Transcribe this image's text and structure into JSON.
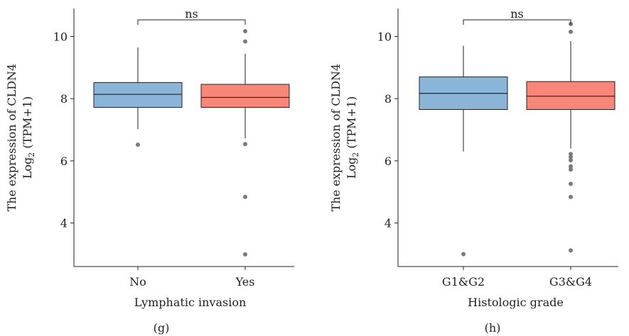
{
  "chart_data": [
    {
      "type": "box",
      "panel_label": "(g)",
      "xlabel": "Lymphatic invasion",
      "ylabel_line1": "The expression of CLDN4",
      "ylabel_line2_main": "Log",
      "ylabel_line2_sub": "2",
      "ylabel_line2_rest": " (TPM+1)",
      "ylim": [
        2.6,
        10.9
      ],
      "yticks": [
        4,
        6,
        8,
        10
      ],
      "categories": [
        "No",
        "Yes"
      ],
      "colors": [
        "#8bb5d8",
        "#f8877a"
      ],
      "boxes": [
        {
          "q1": 7.72,
          "median": 8.14,
          "q3": 8.52,
          "whisker_low": 7.02,
          "whisker_high": 9.65,
          "outliers": [
            6.52
          ]
        },
        {
          "q1": 7.72,
          "median": 8.04,
          "q3": 8.46,
          "whisker_low": 6.72,
          "whisker_high": 9.45,
          "outliers": [
            10.17,
            9.84,
            6.54,
            4.84,
            2.99
          ]
        }
      ],
      "significance": "ns"
    },
    {
      "type": "box",
      "panel_label": "(h)",
      "xlabel": "Histologic grade",
      "ylabel_line1": "The expression of CLDN4",
      "ylabel_line2_main": "Log",
      "ylabel_line2_sub": "2",
      "ylabel_line2_rest": " (TPM+1)",
      "ylim": [
        2.6,
        10.9
      ],
      "yticks": [
        4,
        6,
        8,
        10
      ],
      "categories": [
        "G1&G2",
        "G3&G4"
      ],
      "colors": [
        "#8bb5d8",
        "#f8877a"
      ],
      "boxes": [
        {
          "q1": 7.65,
          "median": 8.17,
          "q3": 8.7,
          "whisker_low": 6.3,
          "whisker_high": 9.7,
          "outliers": [
            3.0
          ]
        },
        {
          "q1": 7.65,
          "median": 8.08,
          "q3": 8.55,
          "whisker_low": 6.4,
          "whisker_high": 9.85,
          "outliers": [
            10.4,
            10.15,
            6.22,
            6.12,
            6.02,
            5.82,
            5.72,
            5.26,
            4.84,
            3.12
          ]
        }
      ],
      "significance": "ns"
    }
  ]
}
